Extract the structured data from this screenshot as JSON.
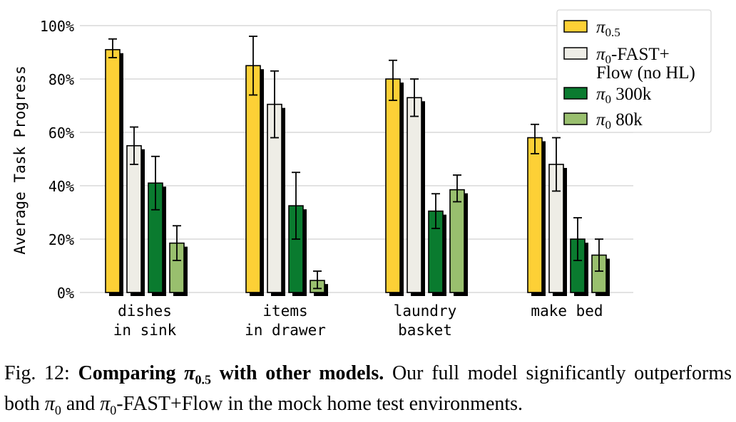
{
  "chart_data": {
    "type": "bar",
    "ylabel": "Average Task Progress",
    "ylim": [
      0,
      100
    ],
    "yticks": [
      0,
      20,
      40,
      60,
      80,
      100
    ],
    "ytick_labels": [
      "0%",
      "20%",
      "40%",
      "60%",
      "80%",
      "100%"
    ],
    "grid": "horizontal",
    "legend_position": "top-right",
    "categories": [
      [
        "dishes",
        "in sink"
      ],
      [
        "items",
        "in drawer"
      ],
      [
        "laundry",
        "basket"
      ],
      [
        "make bed"
      ]
    ],
    "series": [
      {
        "name": "π0.5",
        "color": "#fdd036",
        "values": [
          91,
          85,
          80,
          58
        ],
        "err_low": [
          88,
          74,
          72,
          52
        ],
        "err_high": [
          95,
          96,
          87,
          63
        ]
      },
      {
        "name": "π0-FAST+ Flow (no HL)",
        "color": "#eeede6",
        "values": [
          55,
          70.5,
          73,
          48
        ],
        "err_low": [
          48,
          58,
          66,
          38
        ],
        "err_high": [
          62,
          83,
          80,
          58
        ]
      },
      {
        "name": "π0 300k",
        "color": "#0a7b2f",
        "values": [
          41,
          32.5,
          30.5,
          20
        ],
        "err_low": [
          31,
          20,
          24,
          12
        ],
        "err_high": [
          51,
          45,
          37,
          28
        ]
      },
      {
        "name": "π0 80k",
        "color": "#99bf6e",
        "values": [
          18.5,
          4.5,
          38.5,
          14
        ],
        "err_low": [
          12,
          1.5,
          34,
          8
        ],
        "err_high": [
          25,
          8,
          44,
          20
        ]
      }
    ]
  },
  "legend": {
    "items": [
      {
        "main": "π",
        "sub": "0.5",
        "rest": ""
      },
      {
        "main": "π",
        "sub": "0",
        "rest": "-FAST+",
        "line2": "Flow (no HL)"
      },
      {
        "main": "π",
        "sub": "0",
        "rest": " 300k"
      },
      {
        "main": "π",
        "sub": "0",
        "rest": " 80k"
      }
    ]
  },
  "caption": {
    "fig_label": "Fig. 12:",
    "bold_pre": "Comparing ",
    "bold_pi": "π",
    "bold_sub": "0.5",
    "bold_post": " with other models.",
    "text1": " Our full model significantly outperforms both ",
    "pi_a": "π",
    "sub_a": "0",
    "text2": " and ",
    "pi_b": "π",
    "sub_b": "0",
    "text3": "-FAST+Flow in the mock home test environments."
  }
}
